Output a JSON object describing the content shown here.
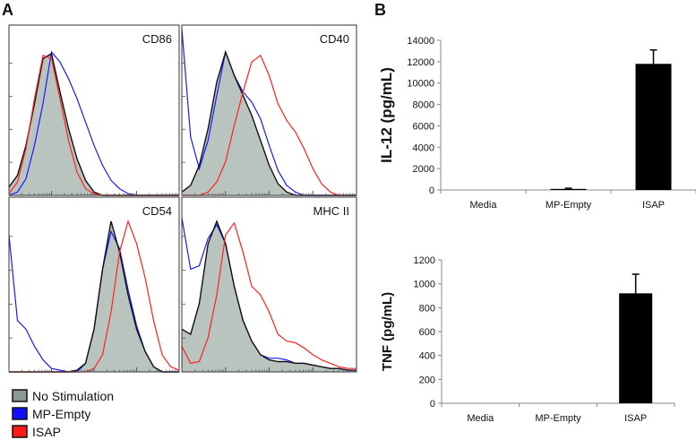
{
  "panel_labels": {
    "a": "A",
    "b": "B"
  },
  "legend": [
    {
      "label": "No Stimulation",
      "color": "#8a9994"
    },
    {
      "label": "MP-Empty",
      "color": "#1010ff"
    },
    {
      "label": "ISAP",
      "color": "#ff1a1a"
    }
  ],
  "colors": {
    "fill": "#b9c4bf",
    "no_stim_line": "#111111",
    "mp_empty": "#1a1aff",
    "isap": "#ff2020",
    "bar": "#000000"
  },
  "chart_data": [
    {
      "type": "histogram-overlay",
      "x_unit": "log10 fluorescence (decades)",
      "x": [
        0,
        0.2,
        0.4,
        0.6,
        0.8,
        1.0,
        1.2,
        1.4,
        1.6,
        1.8,
        2.0,
        2.2,
        2.4,
        2.6,
        2.8,
        3.0,
        3.2,
        3.4,
        3.6,
        3.8,
        4.0
      ],
      "xlim": [
        0,
        4
      ],
      "panels": [
        {
          "title": "CD86",
          "no_stimulation": [
            0.05,
            0.12,
            0.3,
            0.55,
            0.82,
            0.85,
            0.62,
            0.4,
            0.22,
            0.09,
            0.02,
            0,
            0,
            0,
            0,
            0,
            0,
            0,
            0,
            0,
            0
          ],
          "mp_empty": [
            0,
            0.02,
            0.1,
            0.3,
            0.55,
            0.86,
            0.8,
            0.7,
            0.58,
            0.44,
            0.3,
            0.18,
            0.09,
            0.04,
            0.01,
            0,
            0,
            0,
            0,
            0,
            0
          ],
          "isap": [
            0.01,
            0.08,
            0.28,
            0.58,
            0.84,
            0.82,
            0.58,
            0.33,
            0.14,
            0.04,
            0.01,
            0,
            0,
            0,
            0,
            0,
            0,
            0,
            0,
            0,
            0
          ]
        },
        {
          "title": "CD40",
          "no_stimulation": [
            0.02,
            0.06,
            0.18,
            0.4,
            0.68,
            0.86,
            0.72,
            0.6,
            0.48,
            0.33,
            0.18,
            0.07,
            0.02,
            0,
            0,
            0,
            0,
            0,
            0,
            0,
            0
          ],
          "mp_empty": [
            1.0,
            0.35,
            0.16,
            0.33,
            0.6,
            0.86,
            0.72,
            0.62,
            0.56,
            0.46,
            0.3,
            0.15,
            0.06,
            0.02,
            0,
            0,
            0,
            0,
            0,
            0,
            0
          ],
          "isap": [
            0,
            0,
            0,
            0.02,
            0.08,
            0.2,
            0.42,
            0.62,
            0.8,
            0.84,
            0.72,
            0.55,
            0.45,
            0.38,
            0.28,
            0.16,
            0.07,
            0.02,
            0,
            0,
            0
          ]
        },
        {
          "title": "CD54",
          "no_stimulation": [
            0,
            0,
            0,
            0,
            0,
            0,
            0,
            0,
            0.01,
            0.05,
            0.25,
            0.6,
            0.88,
            0.7,
            0.45,
            0.25,
            0.12,
            0.03,
            0,
            0,
            0
          ],
          "mp_empty": [
            0.8,
            0.3,
            0.25,
            0.15,
            0.07,
            0.02,
            0.01,
            0,
            0,
            0.05,
            0.25,
            0.6,
            0.82,
            0.72,
            0.48,
            0.27,
            0.12,
            0.03,
            0,
            0,
            0
          ],
          "isap": [
            0,
            0,
            0,
            0,
            0,
            0,
            0,
            0,
            0,
            0,
            0.02,
            0.1,
            0.35,
            0.7,
            0.88,
            0.75,
            0.55,
            0.3,
            0.1,
            0.03,
            0.01
          ]
        },
        {
          "title": "MHC II",
          "no_stimulation": [
            0.25,
            0.22,
            0.4,
            0.75,
            0.88,
            0.75,
            0.5,
            0.3,
            0.18,
            0.1,
            0.07,
            0.06,
            0.06,
            0.05,
            0.05,
            0.04,
            0.03,
            0.02,
            0.02,
            0.01,
            0.01
          ],
          "mp_empty": [
            0.9,
            0.6,
            0.62,
            0.78,
            0.86,
            0.75,
            0.5,
            0.3,
            0.18,
            0.1,
            0.08,
            0.08,
            0.07,
            0.05,
            0.05,
            0.04,
            0.03,
            0.02,
            0.02,
            0.01,
            0.01
          ],
          "isap": [
            0.15,
            0.05,
            0.06,
            0.2,
            0.45,
            0.8,
            0.87,
            0.7,
            0.5,
            0.45,
            0.35,
            0.22,
            0.18,
            0.17,
            0.14,
            0.1,
            0.07,
            0.05,
            0.03,
            0.02,
            0.02
          ]
        }
      ]
    },
    {
      "type": "bar",
      "ylabel": "IL-12 (pg/mL)",
      "categories": [
        "Media",
        "MP-Empty",
        "ISAP"
      ],
      "values": [
        0,
        100,
        11800
      ],
      "errors": [
        0,
        60,
        1300
      ],
      "ylim": [
        0,
        14000
      ],
      "yticks": [
        "0",
        "2000",
        "4000",
        "6000",
        "8000",
        "10000",
        "12000",
        "14000"
      ],
      "grid": false
    },
    {
      "type": "bar",
      "ylabel": "TNF (pg/mL)",
      "categories": [
        "Media",
        "MP-Empty",
        "ISAP"
      ],
      "values": [
        0,
        0,
        920
      ],
      "errors": [
        0,
        0,
        160
      ],
      "ylim": [
        0,
        1200
      ],
      "yticks": [
        "0",
        "200",
        "400",
        "600",
        "800",
        "1000",
        "1200"
      ],
      "grid": false
    }
  ]
}
